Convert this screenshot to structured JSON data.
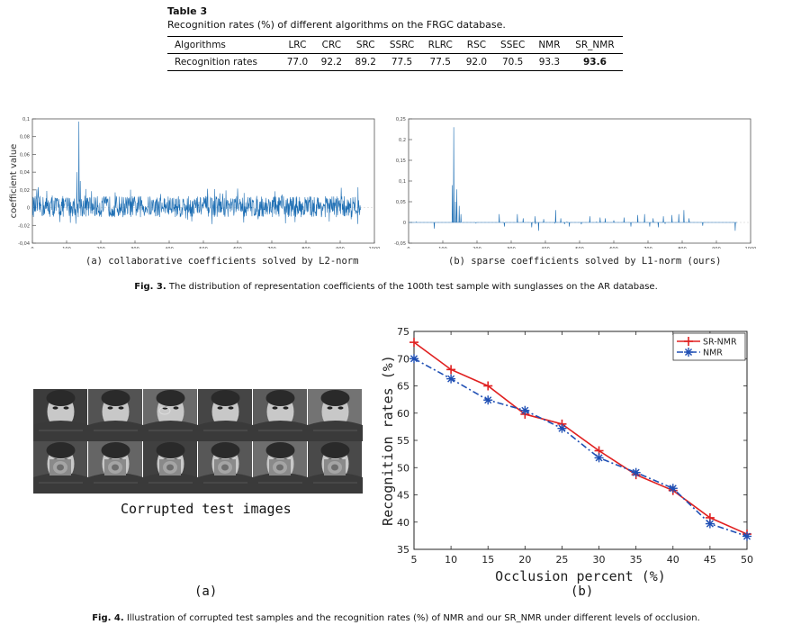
{
  "table3": {
    "label": "Table 3",
    "caption": "Recognition rates (%) of different algorithms on the FRGC database.",
    "headers": [
      "Algorithms",
      "LRC",
      "CRC",
      "SRC",
      "SSRC",
      "RLRC",
      "RSC",
      "SSEC",
      "NMR",
      "SR_NMR"
    ],
    "row_label": "Recognition rates",
    "values": [
      "77.0",
      "92.2",
      "89.2",
      "77.5",
      "77.5",
      "92.0",
      "70.5",
      "93.3",
      "93.6"
    ]
  },
  "fig3": {
    "label": "Fig. 3.",
    "caption": "The distribution of representation coefficients of the 100th test sample with sunglasses on the AR database.",
    "sublabel_a": "(a) collaborative coefficients solved by L2-norm",
    "sublabel_b": "(b) sparse coefficients solved by L1-norm (ours)"
  },
  "fig4": {
    "label": "Fig. 4.",
    "caption": "Illustration of corrupted test samples and the recognition rates (%) of NMR and our SR_NMR under different levels of occlusion.",
    "faces_label": "Corrupted test images",
    "sublabel_a": "(a)",
    "sublabel_b": "(b)"
  },
  "chart_data": [
    {
      "type": "line",
      "id": "fig3a",
      "title": "",
      "xlabel": "",
      "ylabel": "coefficient value",
      "xlim": [
        0,
        1000
      ],
      "ylim": [
        -0.04,
        0.1
      ],
      "xticks": [
        0,
        100,
        200,
        300,
        400,
        500,
        600,
        700,
        800,
        900,
        1000
      ],
      "yticks": [
        -0.04,
        -0.02,
        0,
        0.02,
        0.04,
        0.06,
        0.08,
        0.1
      ],
      "ytick_labels": [
        "-0,04",
        "-0,02",
        "0",
        "0,02",
        "0,04",
        "0,06",
        "0,08",
        "0,1"
      ],
      "color": "#1f6fb4",
      "n_points": 960,
      "peaks": [
        {
          "x": 136,
          "y": 0.097
        },
        {
          "x": 130,
          "y": 0.04
        },
        {
          "x": 140,
          "y": 0.03
        }
      ],
      "noise_amplitude": 0.012
    },
    {
      "type": "line",
      "id": "fig3b",
      "title": "",
      "xlabel": "",
      "ylabel": "",
      "xlim": [
        0,
        1000
      ],
      "ylim": [
        -0.05,
        0.25
      ],
      "xticks": [
        0,
        100,
        200,
        300,
        400,
        500,
        600,
        700,
        800,
        900,
        1000
      ],
      "yticks": [
        -0.05,
        0,
        0.05,
        0.1,
        0.15,
        0.2,
        0.25
      ],
      "ytick_labels": [
        "-0,05",
        "0",
        "0,05",
        "0,1",
        "0,15",
        "0,2",
        "0,25"
      ],
      "color": "#1f6fb4",
      "n_points": 960,
      "spikes": [
        {
          "x": 128,
          "y": 0.09
        },
        {
          "x": 132,
          "y": 0.23
        },
        {
          "x": 137,
          "y": 0.05
        },
        {
          "x": 141,
          "y": 0.08
        },
        {
          "x": 148,
          "y": 0.04
        },
        {
          "x": 153,
          "y": 0.02
        },
        {
          "x": 75,
          "y": -0.015
        },
        {
          "x": 265,
          "y": 0.02
        },
        {
          "x": 280,
          "y": -0.01
        },
        {
          "x": 318,
          "y": 0.02
        },
        {
          "x": 335,
          "y": 0.01
        },
        {
          "x": 360,
          "y": -0.012
        },
        {
          "x": 370,
          "y": 0.015
        },
        {
          "x": 380,
          "y": -0.02
        },
        {
          "x": 395,
          "y": 0.008
        },
        {
          "x": 430,
          "y": 0.03
        },
        {
          "x": 445,
          "y": 0.01
        },
        {
          "x": 470,
          "y": -0.01
        },
        {
          "x": 530,
          "y": 0.015
        },
        {
          "x": 560,
          "y": 0.012
        },
        {
          "x": 575,
          "y": 0.01
        },
        {
          "x": 600,
          "y": 0.005
        },
        {
          "x": 630,
          "y": 0.012
        },
        {
          "x": 650,
          "y": -0.01
        },
        {
          "x": 670,
          "y": 0.018
        },
        {
          "x": 690,
          "y": 0.02
        },
        {
          "x": 705,
          "y": -0.01
        },
        {
          "x": 715,
          "y": 0.01
        },
        {
          "x": 730,
          "y": -0.012
        },
        {
          "x": 745,
          "y": 0.015
        },
        {
          "x": 770,
          "y": 0.018
        },
        {
          "x": 790,
          "y": 0.02
        },
        {
          "x": 805,
          "y": 0.03
        },
        {
          "x": 820,
          "y": 0.01
        },
        {
          "x": 860,
          "y": -0.008
        },
        {
          "x": 955,
          "y": -0.02
        }
      ]
    },
    {
      "type": "line",
      "id": "fig4b",
      "title": "",
      "xlabel": "Occlusion percent (%)",
      "ylabel": "Recognition rates (%)",
      "x": [
        5,
        10,
        15,
        20,
        25,
        30,
        35,
        40,
        45,
        50
      ],
      "xlim": [
        5,
        50
      ],
      "ylim": [
        35,
        75
      ],
      "xticks": [
        5,
        10,
        15,
        20,
        25,
        30,
        35,
        40,
        45,
        50
      ],
      "yticks": [
        35,
        40,
        45,
        50,
        55,
        60,
        65,
        70,
        75
      ],
      "grid": false,
      "legend": "top-right",
      "series": [
        {
          "name": "SR-NMR",
          "values": [
            73.0,
            68.0,
            65.0,
            59.8,
            58.0,
            53.1,
            48.7,
            45.8,
            40.8,
            37.8
          ],
          "color": "#e02020",
          "marker": "plus",
          "dash": "solid"
        },
        {
          "name": "NMR",
          "values": [
            70.0,
            66.3,
            62.4,
            60.5,
            57.2,
            51.8,
            49.1,
            46.2,
            39.7,
            37.4
          ],
          "color": "#1f4fb4",
          "marker": "asterisk",
          "dash": "dashdot"
        }
      ]
    }
  ],
  "colors": {
    "plot_line": "#1f6fb4",
    "sr_nmr": "#e02020",
    "nmr": "#1f4fb4"
  }
}
